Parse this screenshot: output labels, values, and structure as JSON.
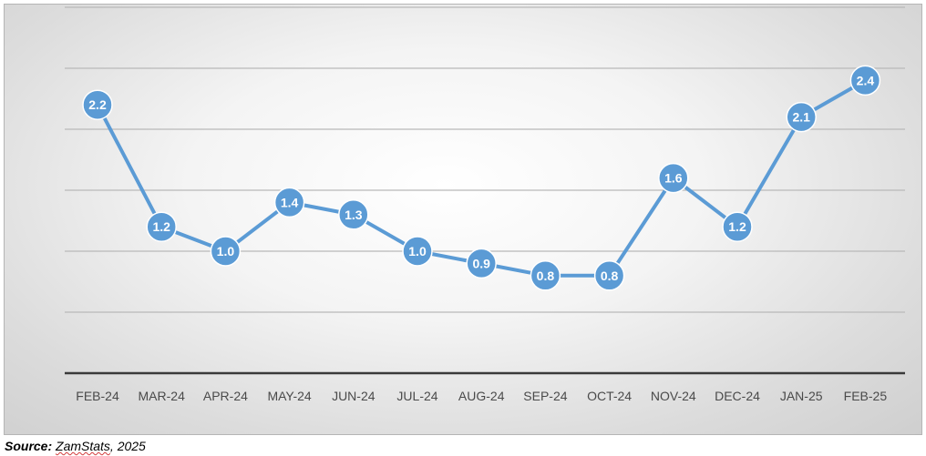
{
  "chart_data": {
    "type": "line",
    "categories": [
      "FEB-24",
      "MAR-24",
      "APR-24",
      "MAY-24",
      "JUN-24",
      "JUL-24",
      "AUG-24",
      "SEP-24",
      "OCT-24",
      "NOV-24",
      "DEC-24",
      "JAN-25",
      "FEB-25"
    ],
    "series": [
      {
        "values": [
          2.2,
          1.2,
          1.0,
          1.4,
          1.3,
          1.0,
          0.9,
          0.8,
          0.8,
          1.6,
          1.2,
          2.1,
          2.4
        ],
        "labels": [
          "2.2",
          "1.2",
          "1.0",
          "1.4",
          "1.3",
          "1.0",
          "0.9",
          "0.8",
          "0.8",
          "1.6",
          "1.2",
          "2.1",
          "2.4"
        ],
        "color": "#5b9bd5"
      }
    ],
    "ylim": [
      0,
      3.0
    ],
    "yticks": [
      0,
      0.5,
      1.0,
      1.5,
      2.0,
      2.5,
      3.0
    ],
    "y_tick_labels_visible": false,
    "grid": true,
    "title": "",
    "xlabel": "",
    "ylabel": ""
  },
  "source": {
    "prefix": "Source:",
    "name": "ZamStats",
    "rest": ", 2025"
  },
  "colors": {
    "series": "#5b9bd5",
    "grid": "#b9b9b9",
    "axis": "#3a3a3a",
    "tick_text": "#4a4a4a"
  }
}
